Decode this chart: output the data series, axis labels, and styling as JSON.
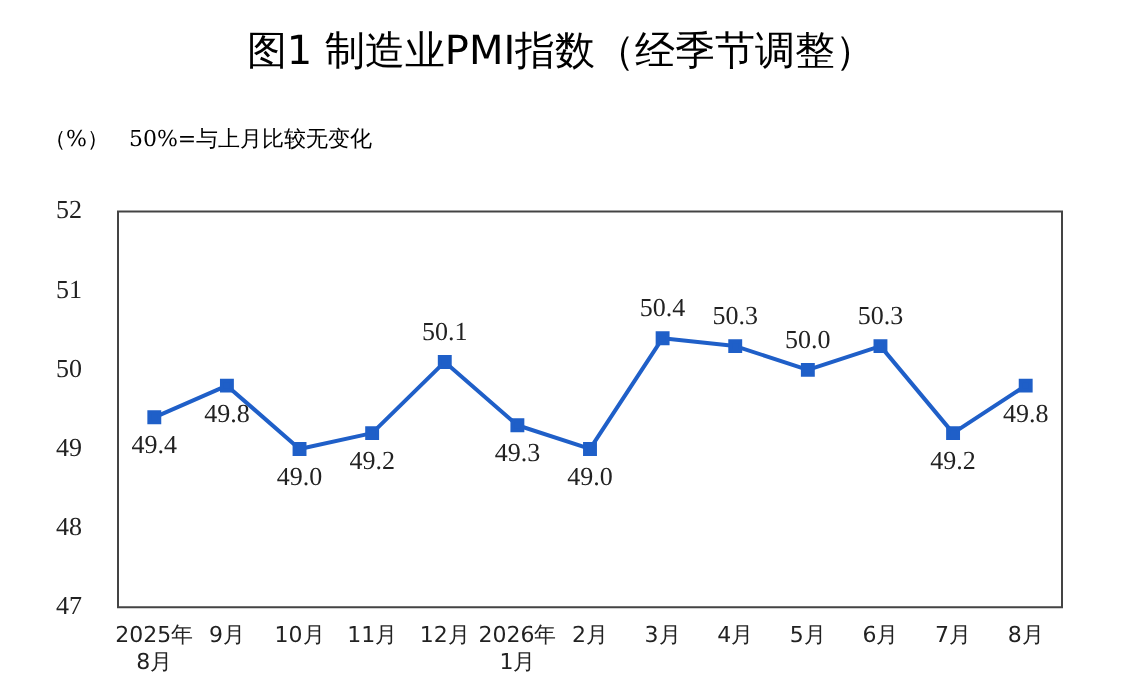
{
  "chart_data": {
    "type": "line",
    "title": "图1  制造业PMI指数（经季节调整）",
    "ylabel": "（%）",
    "annotations": [
      "50%=与上月比较无变化"
    ],
    "categories": [
      "2025年\n8月",
      "9月",
      "10月",
      "11月",
      "12月",
      "2026年\n1月",
      "2月",
      "3月",
      "4月",
      "5月",
      "6月",
      "7月",
      "8月"
    ],
    "series": [
      {
        "color": "#1f5fc8",
        "values": [
          49.4,
          49.8,
          49.0,
          49.2,
          50.1,
          49.3,
          49.0,
          50.4,
          50.3,
          50.0,
          50.3,
          49.2,
          49.8
        ],
        "value_labels": [
          "49.4",
          "49.8",
          "49.0",
          "49.2",
          "50.1",
          "49.3",
          "49.0",
          "50.4",
          "50.3",
          "50.0",
          "50.3",
          "49.2",
          "49.8"
        ]
      }
    ],
    "ylim": [
      47,
      52
    ],
    "yticks": [
      47,
      48,
      49,
      50,
      51,
      52
    ],
    "grid": false,
    "legend": false,
    "marker": "square",
    "line_style": "solid"
  }
}
